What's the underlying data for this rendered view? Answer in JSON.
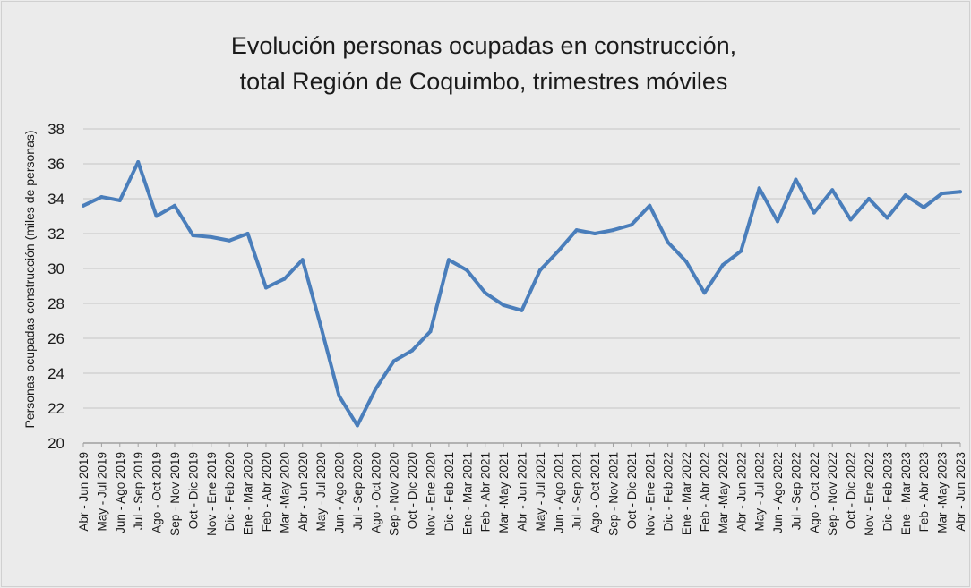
{
  "chart_data": {
    "type": "line",
    "title": "Evolución personas ocupadas en construcción,",
    "subtitle": "total Región de Coquimbo, trimestres móviles",
    "xlabel": "",
    "ylabel": "Personas ocupadas construcción (miles de personas)",
    "ylim": [
      20,
      38
    ],
    "yticks": [
      20,
      22,
      24,
      26,
      28,
      30,
      32,
      34,
      36,
      38
    ],
    "grid": true,
    "line_color": "#4a7ebb",
    "categories": [
      "Abr - Jun 2019",
      "May - Jul 2019",
      "Jun - Ago 2019",
      "Jul - Sep 2019",
      "Ago - Oct 2019",
      "Sep - Nov 2019",
      "Oct - Dic 2019",
      "Nov - Ene 2019",
      "Dic - Feb 2020",
      "Ene - Mar 2020",
      "Feb - Abr 2020",
      "Mar -May 2020",
      "Abr - Jun 2020",
      "May - Jul 2020",
      "Jun - Ago 2020",
      "Jul - Sep 2020",
      "Ago - Oct 2020",
      "Sep - Nov 2020",
      "Oct - Dic 2020",
      "Nov - Ene 2020",
      "Dic - Feb 2021",
      "Ene - Mar 2021",
      "Feb - Abr 2021",
      "Mar -May 2021",
      "Abr - Jun 2021",
      "May - Jul 2021",
      "Jun - Ago 2021",
      "Jul - Sep 2021",
      "Ago - Oct 2021",
      "Sep - Nov 2021",
      "Oct - Dic 2021",
      "Nov - Ene 2021",
      "Dic - Feb 2022",
      "Ene - Mar 2022",
      "Feb - Abr 2022",
      "Mar -May 2022",
      "Abr - Jun 2022",
      "May - Jul 2022",
      "Jun - Ago 2022",
      "Jul - Sep 2022",
      "Ago - Oct 2022",
      "Sep - Nov 2022",
      "Oct - Dic 2022",
      "Nov - Ene 2022",
      "Dic - Feb 2023",
      "Ene - Mar 2023",
      "Feb - Abr 2023",
      "Mar -May 2023",
      "Abr - Jun 2023"
    ],
    "series": [
      {
        "name": "",
        "values": [
          33.6,
          34.1,
          33.9,
          36.1,
          33.0,
          33.6,
          31.9,
          31.8,
          31.6,
          32.0,
          28.9,
          29.4,
          30.5,
          26.7,
          22.7,
          21.0,
          23.1,
          24.7,
          25.3,
          26.4,
          30.5,
          29.9,
          28.6,
          27.9,
          27.6,
          29.9,
          31.0,
          32.2,
          32.0,
          32.2,
          32.5,
          33.6,
          31.5,
          30.4,
          28.6,
          30.2,
          31.0,
          34.6,
          32.7,
          35.1,
          33.2,
          34.5,
          32.8,
          34.0,
          32.9,
          34.2,
          33.5,
          34.3,
          34.4
        ]
      }
    ]
  }
}
